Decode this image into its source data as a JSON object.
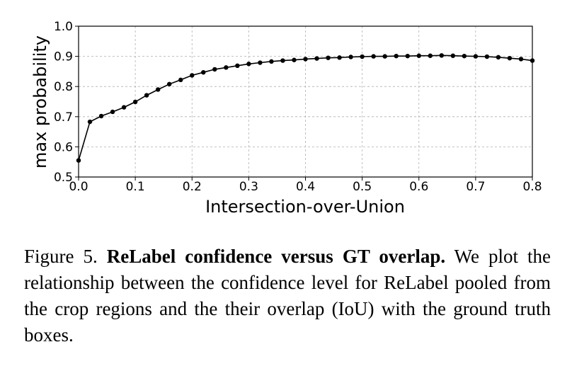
{
  "chart_data": {
    "type": "line",
    "xlabel": "Intersection-over-Union",
    "ylabel": "max probability",
    "xlim": [
      0.0,
      0.8
    ],
    "ylim": [
      0.5,
      1.0
    ],
    "x_ticks": [
      "0.0",
      "0.1",
      "0.2",
      "0.3",
      "0.4",
      "0.5",
      "0.6",
      "0.7",
      "0.8"
    ],
    "y_ticks": [
      "0.5",
      "0.6",
      "0.7",
      "0.8",
      "0.9",
      "1.0"
    ],
    "grid": true,
    "series": [
      {
        "color": "#000000",
        "x": [
          0.0,
          0.02,
          0.04,
          0.06,
          0.08,
          0.1,
          0.12,
          0.14,
          0.16,
          0.18,
          0.2,
          0.22,
          0.24,
          0.26,
          0.28,
          0.3,
          0.32,
          0.34,
          0.36,
          0.38,
          0.4,
          0.42,
          0.44,
          0.46,
          0.48,
          0.5,
          0.52,
          0.54,
          0.56,
          0.58,
          0.6,
          0.62,
          0.64,
          0.66,
          0.68,
          0.7,
          0.72,
          0.74,
          0.76,
          0.78,
          0.8
        ],
        "y": [
          0.555,
          0.683,
          0.702,
          0.716,
          0.731,
          0.749,
          0.771,
          0.79,
          0.808,
          0.822,
          0.837,
          0.847,
          0.857,
          0.863,
          0.869,
          0.875,
          0.879,
          0.883,
          0.886,
          0.888,
          0.891,
          0.893,
          0.895,
          0.896,
          0.898,
          0.899,
          0.9,
          0.9,
          0.901,
          0.901,
          0.902,
          0.902,
          0.903,
          0.902,
          0.901,
          0.9,
          0.899,
          0.897,
          0.894,
          0.891,
          0.886
        ]
      }
    ]
  },
  "caption": {
    "prefix": "Figure 5. ",
    "title": "ReLabel confidence versus GT overlap.",
    "body": " We plot the relationship between the confidence level for ReLabel pooled from the crop regions and the their overlap (IoU) with the ground truth boxes."
  }
}
